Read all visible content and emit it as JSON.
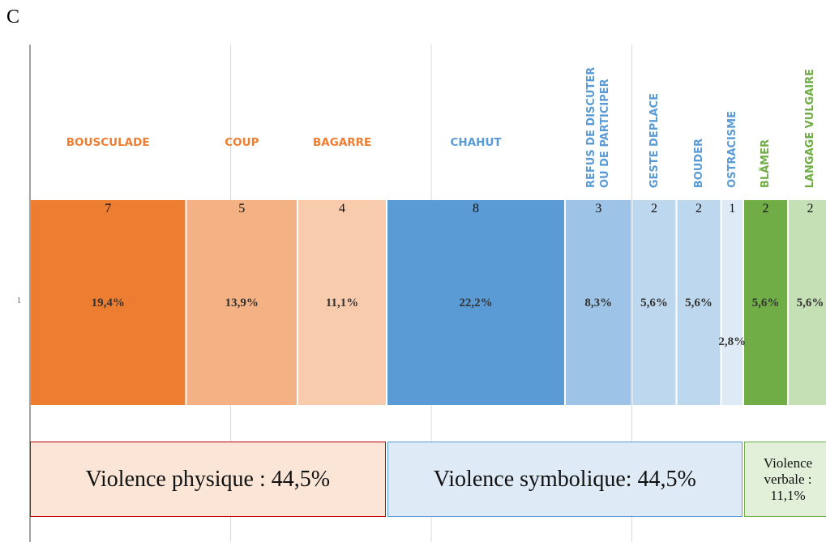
{
  "chart_data": {
    "type": "stacked_barh",
    "title": "C",
    "categories": [
      "1"
    ],
    "xlim": [
      0,
      36
    ],
    "xticks": [
      0,
      9,
      18,
      27,
      36
    ],
    "grid": true,
    "series": [
      {
        "name": "BOUSCULADE",
        "color": "#ED7D31",
        "label_color": "#ED7D31",
        "values": [
          7
        ],
        "share_labels": [
          "19,4%"
        ]
      },
      {
        "name": "COUP",
        "color": "#F4B183",
        "label_color": "#ED7D31",
        "values": [
          5
        ],
        "share_labels": [
          "13,9%"
        ]
      },
      {
        "name": "BAGARRE",
        "color": "#F8CBAD",
        "label_color": "#ED7D31",
        "values": [
          4
        ],
        "share_labels": [
          "11,1%"
        ]
      },
      {
        "name": "CHAHUT",
        "color": "#5B9BD5",
        "label_color": "#5B9BD5",
        "values": [
          8
        ],
        "share_labels": [
          "22,2%"
        ]
      },
      {
        "name": "REFUS DE DISCUTER OU DE PARTICIPER",
        "color": "#9DC3E6",
        "label_color": "#5B9BD5",
        "values": [
          3
        ],
        "share_labels": [
          "8,3%"
        ]
      },
      {
        "name": "GESTE DEPLACE",
        "color": "#BDD7EE",
        "label_color": "#5B9BD5",
        "values": [
          2
        ],
        "share_labels": [
          "5,6%"
        ]
      },
      {
        "name": "BOUDER",
        "color": "#BDD7EE",
        "label_color": "#5B9BD5",
        "values": [
          2
        ],
        "share_labels": [
          "5,6%"
        ]
      },
      {
        "name": "OSTRACISME",
        "color": "#DEEBF7",
        "label_color": "#5B9BD5",
        "values": [
          1
        ],
        "share_labels": [
          "2,8%"
        ]
      },
      {
        "name": "BLÂMER",
        "color": "#70AD47",
        "label_color": "#70AD47",
        "values": [
          2
        ],
        "share_labels": [
          "5,6%"
        ]
      },
      {
        "name": "LANGAGE VULGAIRE",
        "color": "#C5E0B4",
        "label_color": "#70AD47",
        "values": [
          2
        ],
        "share_labels": [
          "5,6%"
        ]
      }
    ],
    "groups": [
      {
        "label": "Violence physique : 44,5%",
        "value": 44.5,
        "color": "#FBE5D6",
        "border": "#C00000"
      },
      {
        "label": "Violence symbolique: 44,5%",
        "value": 44.5,
        "color": "#DEEBF7",
        "border": "#5B9BD5"
      },
      {
        "label": "Violence verbale : 11,1%",
        "value": 11.1,
        "color": "#E2F0D9",
        "border": "#70AD47"
      }
    ]
  }
}
